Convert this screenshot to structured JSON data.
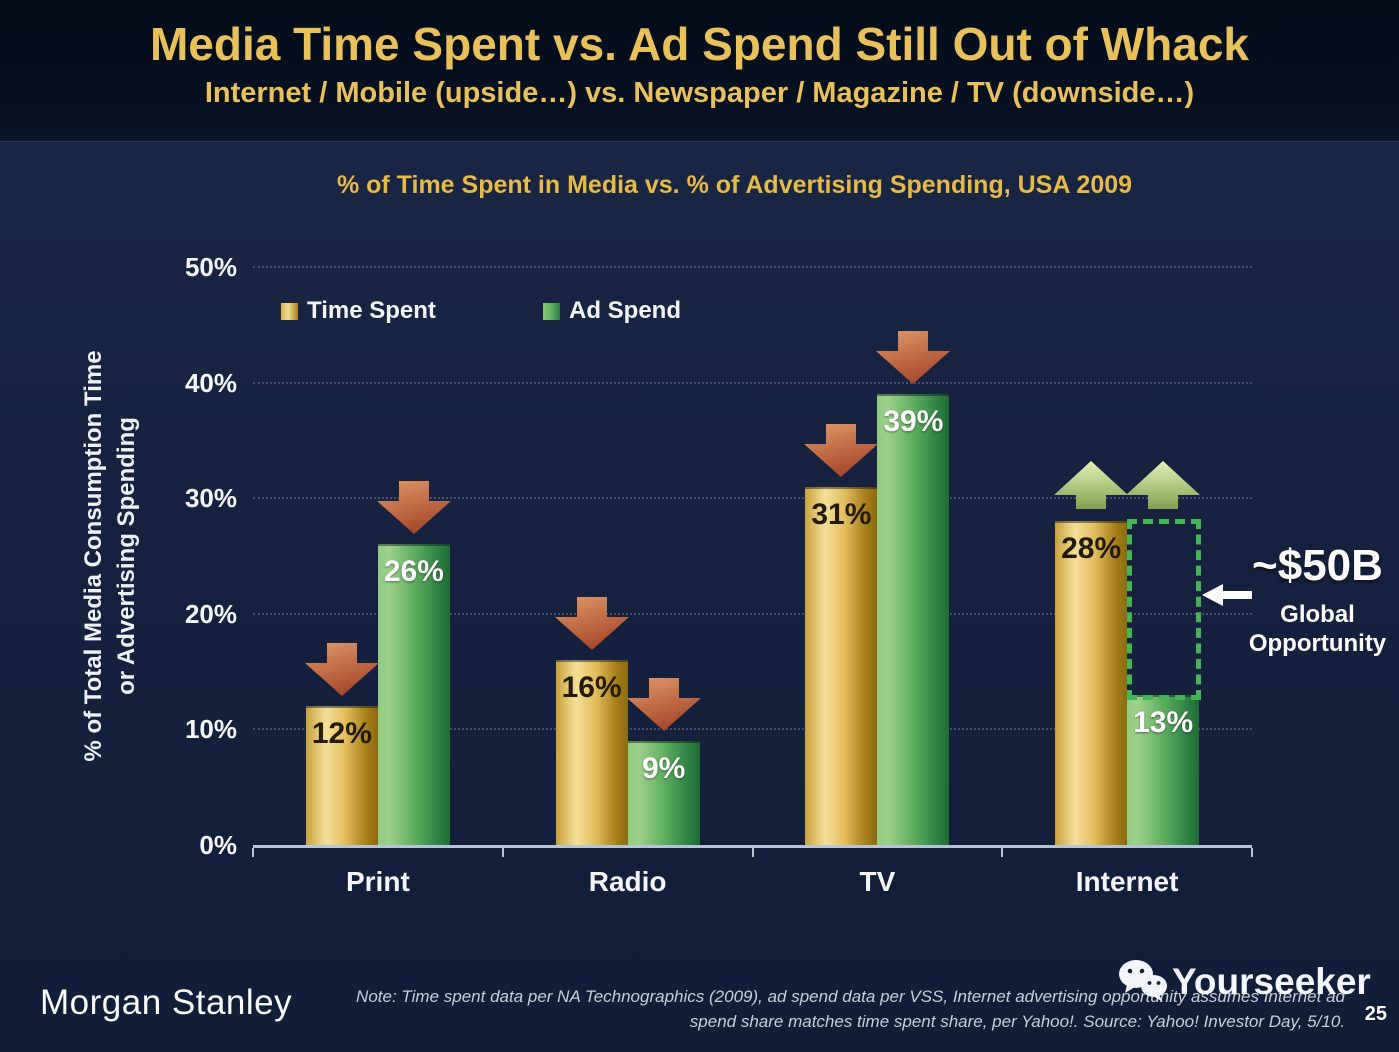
{
  "header": {
    "title": "Media Time Spent vs. Ad Spend Still Out of Whack",
    "subtitle": "Internet / Mobile (upside…) vs. Newspaper / Magazine / TV (downside…)"
  },
  "chart_data": {
    "type": "bar",
    "title": "% of Time Spent in Media vs. % of Advertising Spending, USA 2009",
    "ylabel": [
      "% of Total Media Consumption Time",
      "or Advertising Spending"
    ],
    "categories": [
      "Print",
      "Radio",
      "TV",
      "Internet"
    ],
    "series": [
      {
        "name": "Time Spent",
        "values": [
          12,
          16,
          31,
          28
        ]
      },
      {
        "name": "Ad Spend",
        "values": [
          26,
          9,
          39,
          13
        ]
      }
    ],
    "value_label_suffix": "%",
    "trend_arrows": [
      "down",
      "down",
      "down",
      "up"
    ],
    "ylim": [
      0,
      50
    ],
    "ytick_step": 10,
    "grid": "dotted-horizontal",
    "legend_position": "top-left-inside",
    "colors": {
      "time_spent_bar": "#e2bd5c",
      "ad_spend_bar": "#5fae5f",
      "down_arrow": "#c06a44",
      "up_arrow": "#b5ce7e",
      "opportunity_box": "#45b455",
      "title_gold": "#e8ba45"
    },
    "annotation": {
      "headline": "~$50B",
      "line1": "Global",
      "line2": "Opportunity",
      "points_at": "Internet ad-spend gap"
    }
  },
  "footer": {
    "logo": "Morgan Stanley",
    "note_line1": "Note: Time spent data per NA Technographics (2009), ad spend data per VSS, Internet advertising opportunity assumes Internet ad",
    "note_line2": "spend share matches time spent share, per Yahoo!. Source: Yahoo! Investor Day, 5/10.",
    "page_number": "25",
    "watermark": "Yourseeker"
  }
}
